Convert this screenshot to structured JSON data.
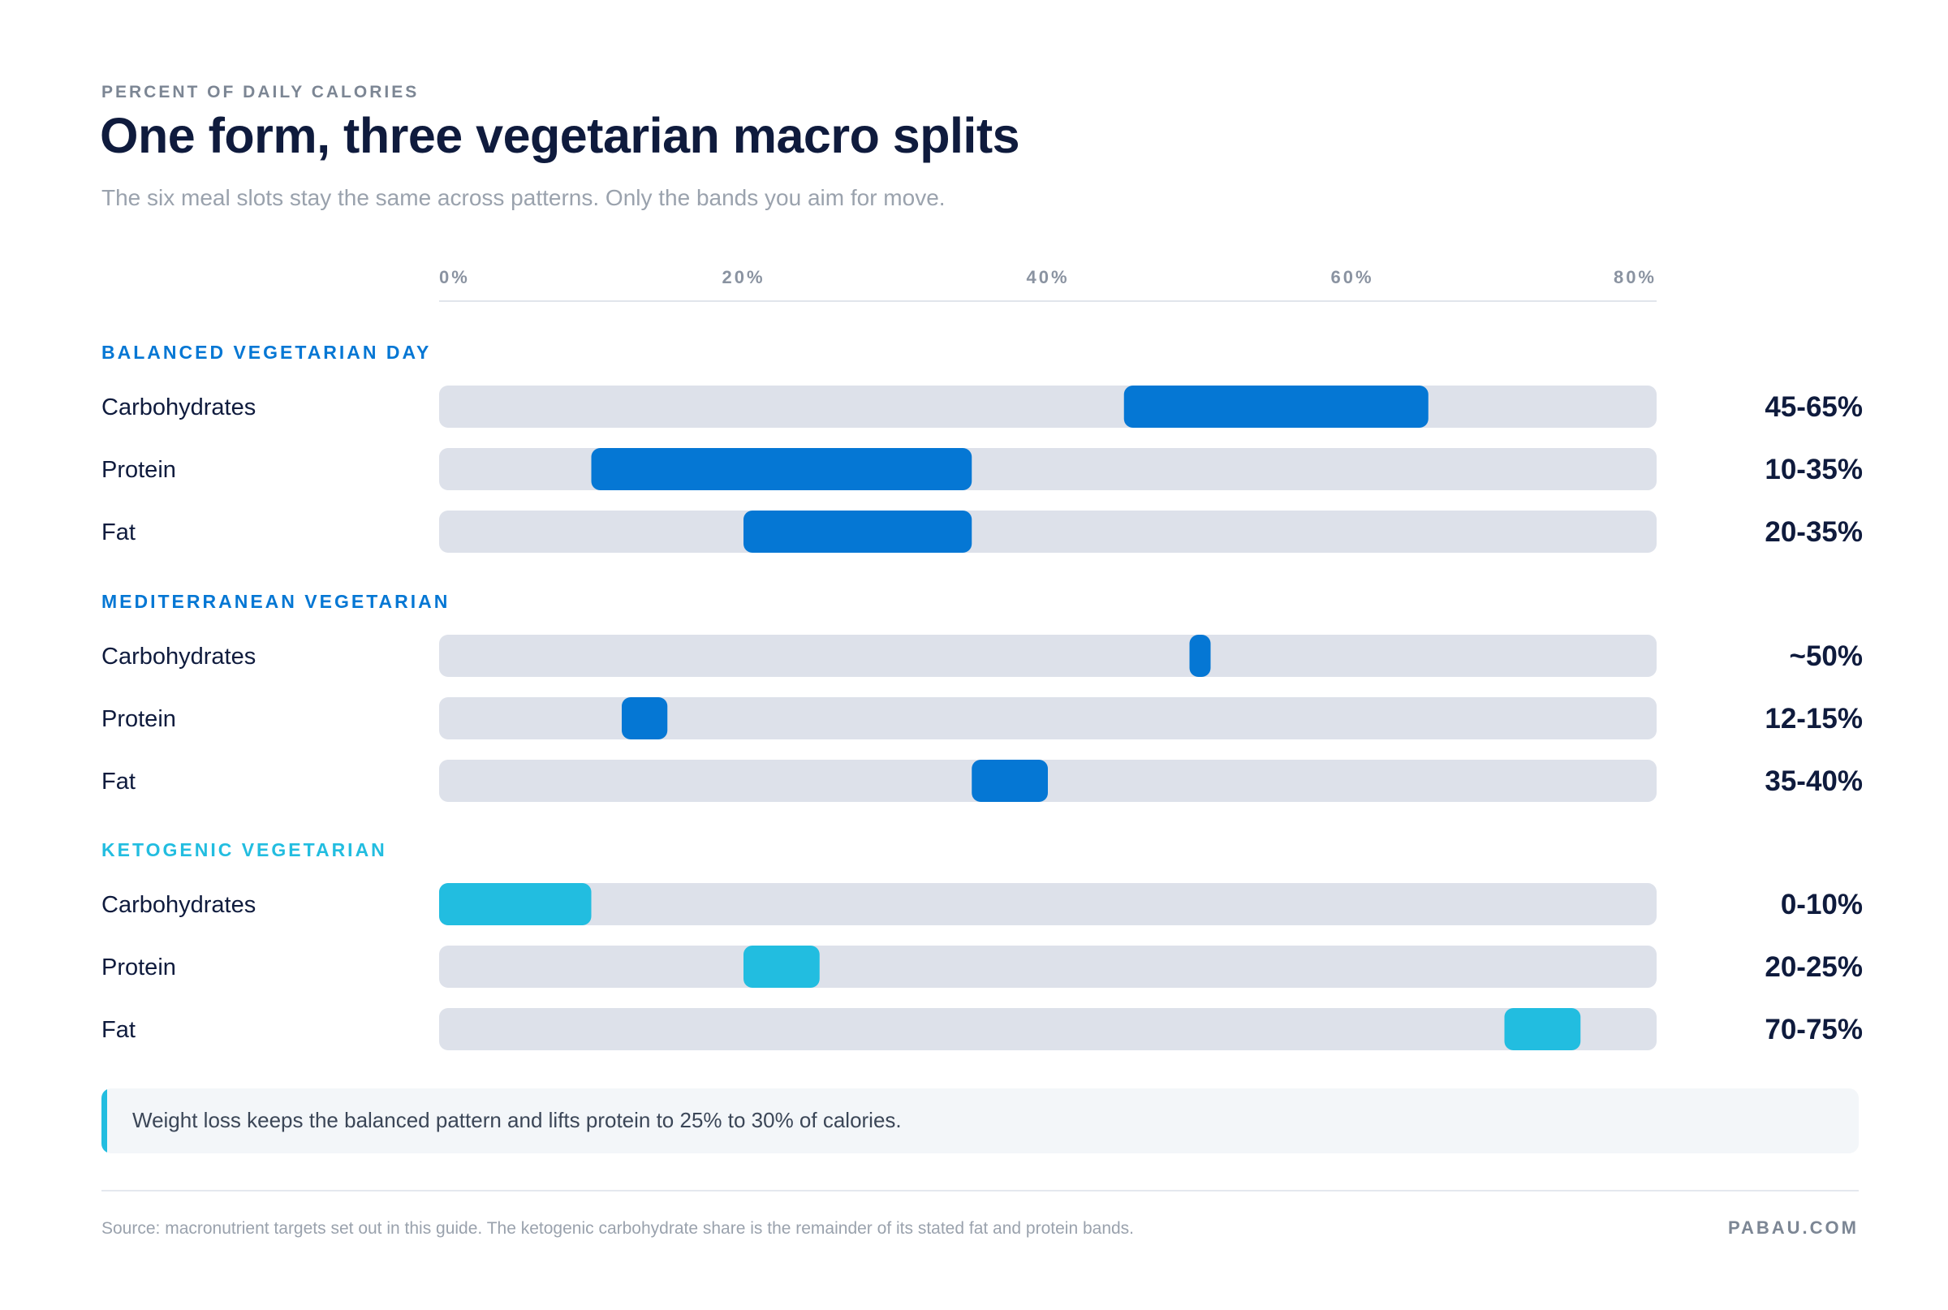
{
  "header": {
    "eyebrow": "PERCENT OF DAILY CALORIES",
    "title": "One form, three vegetarian macro splits",
    "subtitle": "The six meal slots stay the same across patterns. Only the bands you aim for move."
  },
  "chart_data": {
    "type": "bar",
    "orientation": "horizontal range bands",
    "xlim": [
      0,
      80
    ],
    "x_ticks": [
      "0%",
      "20%",
      "40%",
      "60%",
      "80%"
    ],
    "x_tick_values": [
      0,
      20,
      40,
      60,
      80
    ],
    "grid": false,
    "groups": [
      {
        "name": "BALANCED VEGETARIAN DAY",
        "color": "#0577d4",
        "rows": [
          {
            "label": "Carbohydrates",
            "low": 45,
            "high": 65,
            "value_label": "45-65%"
          },
          {
            "label": "Protein",
            "low": 10,
            "high": 35,
            "value_label": "10-35%"
          },
          {
            "label": "Fat",
            "low": 20,
            "high": 35,
            "value_label": "20-35%"
          }
        ]
      },
      {
        "name": "MEDITERRANEAN VEGETARIAN",
        "color": "#0577d4",
        "rows": [
          {
            "label": "Carbohydrates",
            "low": 50,
            "high": 50,
            "value_label": "~50%"
          },
          {
            "label": "Protein",
            "low": 12,
            "high": 15,
            "value_label": "12-15%"
          },
          {
            "label": "Fat",
            "low": 35,
            "high": 40,
            "value_label": "35-40%"
          }
        ]
      },
      {
        "name": "KETOGENIC VEGETARIAN",
        "color": "#22bde0",
        "rows": [
          {
            "label": "Carbohydrates",
            "low": 0,
            "high": 10,
            "value_label": "0-10%"
          },
          {
            "label": "Protein",
            "low": 20,
            "high": 25,
            "value_label": "20-25%"
          },
          {
            "label": "Fat",
            "low": 70,
            "high": 75,
            "value_label": "70-75%"
          }
        ]
      }
    ],
    "track_color": "#dde1ea"
  },
  "callout": {
    "text": "Weight loss keeps the balanced pattern and lifts protein to 25% to 30% of calories."
  },
  "footer": {
    "source": "Source: macronutrient targets set out in this guide. The ketogenic carbohydrate share is the remainder of its stated fat and protein bands.",
    "brand": "PABAU.COM"
  }
}
